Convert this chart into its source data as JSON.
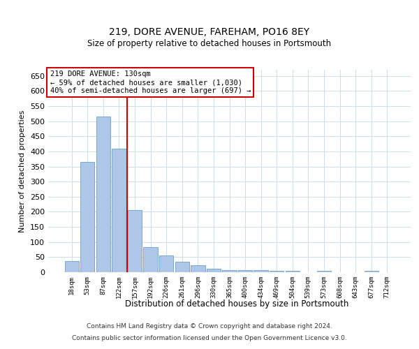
{
  "title1": "219, DORE AVENUE, FAREHAM, PO16 8EY",
  "title2": "Size of property relative to detached houses in Portsmouth",
  "xlabel": "Distribution of detached houses by size in Portsmouth",
  "ylabel": "Number of detached properties",
  "footer1": "Contains HM Land Registry data © Crown copyright and database right 2024.",
  "footer2": "Contains public sector information licensed under the Open Government Licence v3.0.",
  "annotation_line1": "219 DORE AVENUE: 130sqm",
  "annotation_line2": "← 59% of detached houses are smaller (1,030)",
  "annotation_line3": "40% of semi-detached houses are larger (697) →",
  "bar_color": "#aec6e8",
  "bar_edge_color": "#5a8fc0",
  "vline_color": "#cc0000",
  "vline_x_index": 3.5,
  "categories": [
    "18sqm",
    "53sqm",
    "87sqm",
    "122sqm",
    "157sqm",
    "192sqm",
    "226sqm",
    "261sqm",
    "296sqm",
    "330sqm",
    "365sqm",
    "400sqm",
    "434sqm",
    "469sqm",
    "504sqm",
    "539sqm",
    "573sqm",
    "608sqm",
    "643sqm",
    "677sqm",
    "712sqm"
  ],
  "values": [
    37,
    365,
    515,
    410,
    205,
    83,
    55,
    35,
    22,
    12,
    8,
    8,
    8,
    5,
    5,
    0,
    5,
    0,
    0,
    5,
    0
  ],
  "ylim": [
    0,
    670
  ],
  "yticks": [
    0,
    50,
    100,
    150,
    200,
    250,
    300,
    350,
    400,
    450,
    500,
    550,
    600,
    650
  ],
  "background_color": "#ffffff",
  "grid_color": "#c8d8e8"
}
